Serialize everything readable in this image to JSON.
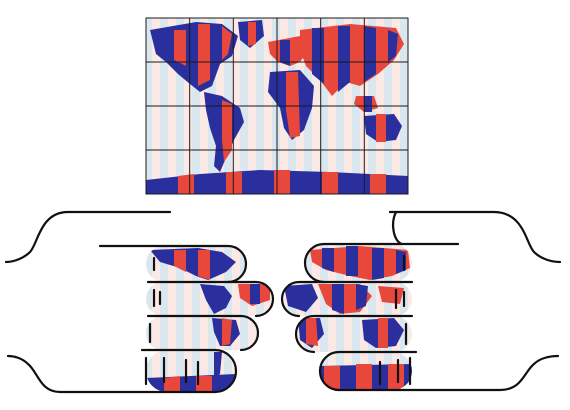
{
  "figure": {
    "description_free": true,
    "palette": {
      "land_primary": "#2b2f9e",
      "land_secondary": "#e8473b",
      "ocean_stripe_a": "#dbe7ef",
      "ocean_stripe_b": "#fbe9e6",
      "grid": "#1a1a1a",
      "outline": "#111111"
    },
    "map_grid": {
      "columns": 6,
      "rows": 4
    },
    "hands": [
      "left-hand",
      "right-hand"
    ],
    "strips_per_hand": 4
  }
}
